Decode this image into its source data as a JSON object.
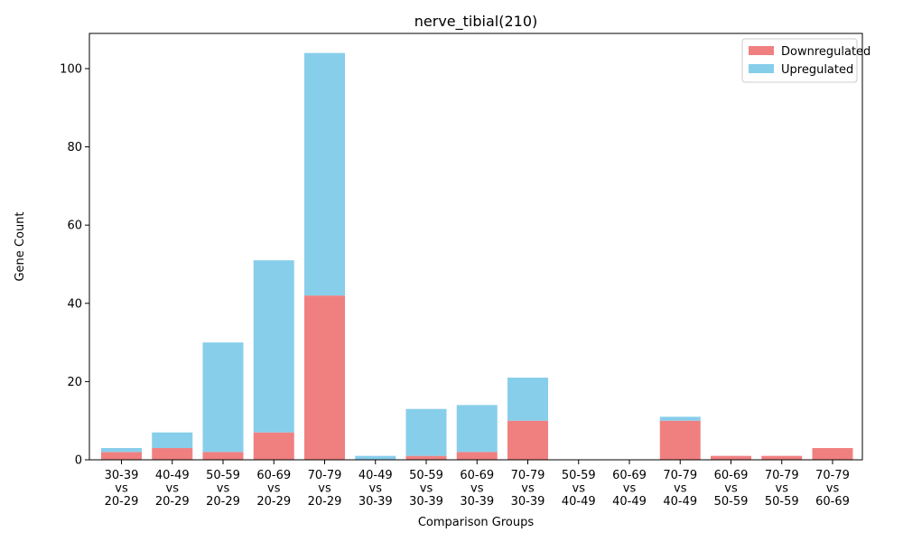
{
  "chart_data": {
    "type": "bar",
    "stacked": true,
    "title": "nerve_tibial(210)",
    "xlabel": "Comparison Groups",
    "ylabel": "Gene Count",
    "ylim": [
      0,
      109
    ],
    "yticks": [
      0,
      20,
      40,
      60,
      80,
      100
    ],
    "grid": false,
    "legend_position": "top-right",
    "categories": [
      [
        "30-39",
        "vs",
        "20-29"
      ],
      [
        "40-49",
        "vs",
        "20-29"
      ],
      [
        "50-59",
        "vs",
        "20-29"
      ],
      [
        "60-69",
        "vs",
        "20-29"
      ],
      [
        "70-79",
        "vs",
        "20-29"
      ],
      [
        "40-49",
        "vs",
        "30-39"
      ],
      [
        "50-59",
        "vs",
        "30-39"
      ],
      [
        "60-69",
        "vs",
        "30-39"
      ],
      [
        "70-79",
        "vs",
        "30-39"
      ],
      [
        "50-59",
        "vs",
        "40-49"
      ],
      [
        "60-69",
        "vs",
        "40-49"
      ],
      [
        "70-79",
        "vs",
        "40-49"
      ],
      [
        "60-69",
        "vs",
        "50-59"
      ],
      [
        "70-79",
        "vs",
        "50-59"
      ],
      [
        "70-79",
        "vs",
        "60-69"
      ]
    ],
    "series": [
      {
        "name": "Downregulated",
        "color": "#f08080",
        "values": [
          2,
          3,
          2,
          7,
          42,
          0,
          1,
          2,
          10,
          0,
          0,
          10,
          1,
          1,
          3
        ]
      },
      {
        "name": "Upregulated",
        "color": "#87ceeb",
        "values": [
          1,
          4,
          28,
          44,
          62,
          1,
          12,
          12,
          11,
          0,
          0,
          1,
          0,
          0,
          0
        ]
      }
    ]
  }
}
